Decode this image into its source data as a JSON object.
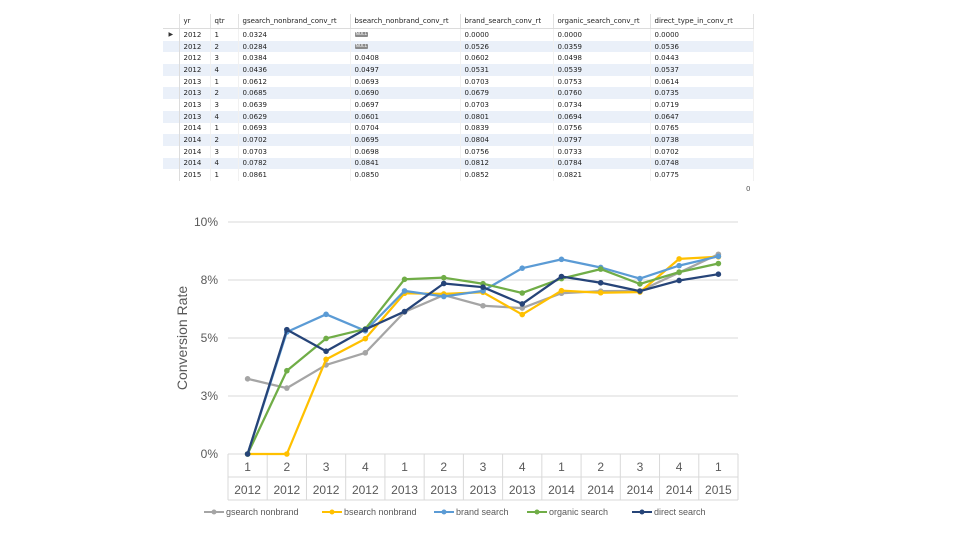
{
  "table": {
    "columns": [
      "yr",
      "qtr",
      "gsearch_nonbrand_conv_rt",
      "bsearch_nonbrand_conv_rt",
      "brand_search_conv_rt",
      "organic_search_conv_rt",
      "direct_type_in_conv_rt"
    ],
    "rows": [
      [
        "2012",
        "1",
        "0.0324",
        "NULL",
        "0.0000",
        "0.0000",
        "0.0000"
      ],
      [
        "2012",
        "2",
        "0.0284",
        "NULL",
        "0.0526",
        "0.0359",
        "0.0536"
      ],
      [
        "2012",
        "3",
        "0.0384",
        "0.0408",
        "0.0602",
        "0.0498",
        "0.0443"
      ],
      [
        "2012",
        "4",
        "0.0436",
        "0.0497",
        "0.0531",
        "0.0539",
        "0.0537"
      ],
      [
        "2013",
        "1",
        "0.0612",
        "0.0693",
        "0.0703",
        "0.0753",
        "0.0614"
      ],
      [
        "2013",
        "2",
        "0.0685",
        "0.0690",
        "0.0679",
        "0.0760",
        "0.0735"
      ],
      [
        "2013",
        "3",
        "0.0639",
        "0.0697",
        "0.0703",
        "0.0734",
        "0.0719"
      ],
      [
        "2013",
        "4",
        "0.0629",
        "0.0601",
        "0.0801",
        "0.0694",
        "0.0647"
      ],
      [
        "2014",
        "1",
        "0.0693",
        "0.0704",
        "0.0839",
        "0.0756",
        "0.0765"
      ],
      [
        "2014",
        "2",
        "0.0702",
        "0.0695",
        "0.0804",
        "0.0797",
        "0.0738"
      ],
      [
        "2014",
        "3",
        "0.0703",
        "0.0698",
        "0.0756",
        "0.0733",
        "0.0702"
      ],
      [
        "2014",
        "4",
        "0.0782",
        "0.0841",
        "0.0812",
        "0.0784",
        "0.0748"
      ],
      [
        "2015",
        "1",
        "0.0861",
        "0.0850",
        "0.0852",
        "0.0821",
        "0.0775"
      ]
    ],
    "null_label": "NULL",
    "corner_text": "0"
  },
  "chart_data": {
    "type": "line",
    "ylabel": "Conversion Rate",
    "ylim": [
      0,
      0.1
    ],
    "yticks": [
      {
        "value": 0.0,
        "label": "0%"
      },
      {
        "value": 0.025,
        "label": "3%"
      },
      {
        "value": 0.05,
        "label": "5%"
      },
      {
        "value": 0.075,
        "label": "8%"
      },
      {
        "value": 0.1,
        "label": "10%"
      }
    ],
    "categories": [
      {
        "qtr": "1",
        "yr": "2012"
      },
      {
        "qtr": "2",
        "yr": "2012"
      },
      {
        "qtr": "3",
        "yr": "2012"
      },
      {
        "qtr": "4",
        "yr": "2012"
      },
      {
        "qtr": "1",
        "yr": "2013"
      },
      {
        "qtr": "2",
        "yr": "2013"
      },
      {
        "qtr": "3",
        "yr": "2013"
      },
      {
        "qtr": "4",
        "yr": "2013"
      },
      {
        "qtr": "1",
        "yr": "2014"
      },
      {
        "qtr": "2",
        "yr": "2014"
      },
      {
        "qtr": "3",
        "yr": "2014"
      },
      {
        "qtr": "4",
        "yr": "2014"
      },
      {
        "qtr": "1",
        "yr": "2015"
      }
    ],
    "legend_position": "bottom",
    "grid": true,
    "series": [
      {
        "name": "gsearch nonbrand",
        "color": "#a5a5a5",
        "values": [
          0.0324,
          0.0284,
          0.0384,
          0.0436,
          0.0612,
          0.0685,
          0.0639,
          0.0629,
          0.0693,
          0.0702,
          0.0703,
          0.0782,
          0.0861
        ]
      },
      {
        "name": "bsearch nonbrand",
        "color": "#ffc000",
        "values": [
          0.0,
          0.0,
          0.0408,
          0.0497,
          0.0693,
          0.069,
          0.0697,
          0.0601,
          0.0704,
          0.0695,
          0.0698,
          0.0841,
          0.085
        ]
      },
      {
        "name": "brand search",
        "color": "#5b9bd5",
        "values": [
          0.0,
          0.0526,
          0.0602,
          0.0531,
          0.0703,
          0.0679,
          0.0703,
          0.0801,
          0.0839,
          0.0804,
          0.0756,
          0.0812,
          0.0852
        ]
      },
      {
        "name": "organic search",
        "color": "#70ad47",
        "values": [
          0.0,
          0.0359,
          0.0498,
          0.0539,
          0.0753,
          0.076,
          0.0734,
          0.0694,
          0.0756,
          0.0797,
          0.0733,
          0.0784,
          0.0821
        ]
      },
      {
        "name": "direct search",
        "color": "#264478",
        "values": [
          0.0,
          0.0536,
          0.0443,
          0.0537,
          0.0614,
          0.0735,
          0.0719,
          0.0647,
          0.0765,
          0.0738,
          0.0702,
          0.0748,
          0.0775
        ]
      }
    ]
  }
}
